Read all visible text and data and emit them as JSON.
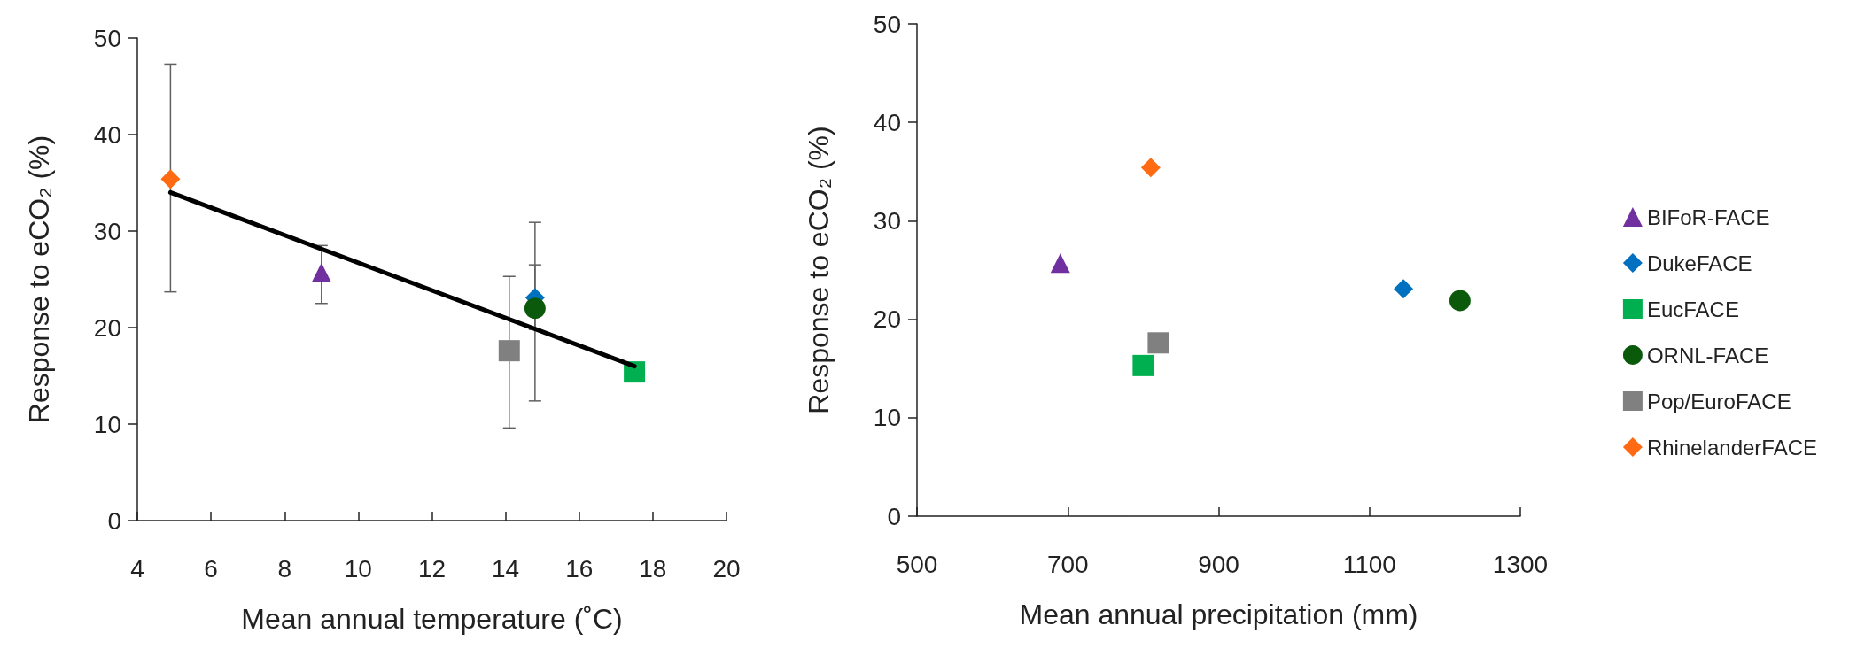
{
  "chart_data": [
    {
      "type": "scatter",
      "xlabel": "Mean annual temperature (˚C)",
      "ylabel": "Response to eCO₂ (%)",
      "xlim": [
        4,
        20
      ],
      "xticks": [
        4,
        6,
        8,
        10,
        12,
        14,
        16,
        18,
        20
      ],
      "ylim": [
        0,
        50
      ],
      "yticks": [
        0,
        10,
        20,
        30,
        40,
        50
      ],
      "grid": false,
      "legend": false,
      "series": [
        {
          "color": "#7030a0",
          "marker": "triangle",
          "x": [
            9.0
          ],
          "values": [
            25.7
          ],
          "errors": [
            [
              22.5,
              28.5
            ]
          ]
        },
        {
          "color": "#0070c0",
          "marker": "diamond",
          "x": [
            14.8
          ],
          "values": [
            23.1
          ],
          "errors": [
            [
              19.8,
              26.5
            ]
          ]
        },
        {
          "color": "#00b050",
          "marker": "square",
          "x": [
            17.5
          ],
          "values": [
            15.4
          ],
          "errors": [
            null
          ]
        },
        {
          "color": "#0b5a0b",
          "marker": "circle",
          "x": [
            14.8
          ],
          "values": [
            22.0
          ],
          "errors": [
            [
              12.4,
              30.9
            ]
          ]
        },
        {
          "color": "#808080",
          "marker": "square",
          "x": [
            14.1
          ],
          "values": [
            17.6
          ],
          "errors": [
            [
              9.6,
              25.3
            ]
          ]
        },
        {
          "color": "#ff6a13",
          "marker": "diamond",
          "x": [
            4.9
          ],
          "values": [
            35.4
          ],
          "errors": [
            [
              23.7,
              47.3
            ]
          ]
        },
        {
          "type": "line",
          "color": "#000000",
          "marker": "none",
          "x": [
            4.9,
            17.5
          ],
          "values": [
            34.0,
            16.0
          ]
        }
      ]
    },
    {
      "type": "scatter",
      "xlabel": "Mean annual precipitation (mm)",
      "ylabel": "Response to eCO₂ (%)",
      "xlim": [
        500,
        1300
      ],
      "xticks": [
        500,
        700,
        900,
        1100,
        1300
      ],
      "ylim": [
        0,
        50
      ],
      "yticks": [
        0,
        10,
        20,
        30,
        40,
        50
      ],
      "grid": false,
      "legend": "right",
      "series": [
        {
          "name": "BIFoR-FACE",
          "color": "#7030a0",
          "marker": "triangle",
          "x": [
            690
          ],
          "values": [
            25.7
          ]
        },
        {
          "name": "DukeFACE",
          "color": "#0070c0",
          "marker": "diamond",
          "x": [
            1145
          ],
          "values": [
            23.1
          ]
        },
        {
          "name": "EucFACE",
          "color": "#00b050",
          "marker": "square",
          "x": [
            800
          ],
          "values": [
            15.3
          ]
        },
        {
          "name": "ORNL-FACE",
          "color": "#0b5a0b",
          "marker": "circle",
          "x": [
            1220
          ],
          "values": [
            21.9
          ]
        },
        {
          "name": "Pop/EuroFACE",
          "color": "#808080",
          "marker": "square",
          "x": [
            820
          ],
          "values": [
            17.6
          ]
        },
        {
          "name": "RhinelanderFACE",
          "color": "#ff6a13",
          "marker": "diamond",
          "x": [
            810
          ],
          "values": [
            35.4
          ]
        }
      ]
    }
  ]
}
